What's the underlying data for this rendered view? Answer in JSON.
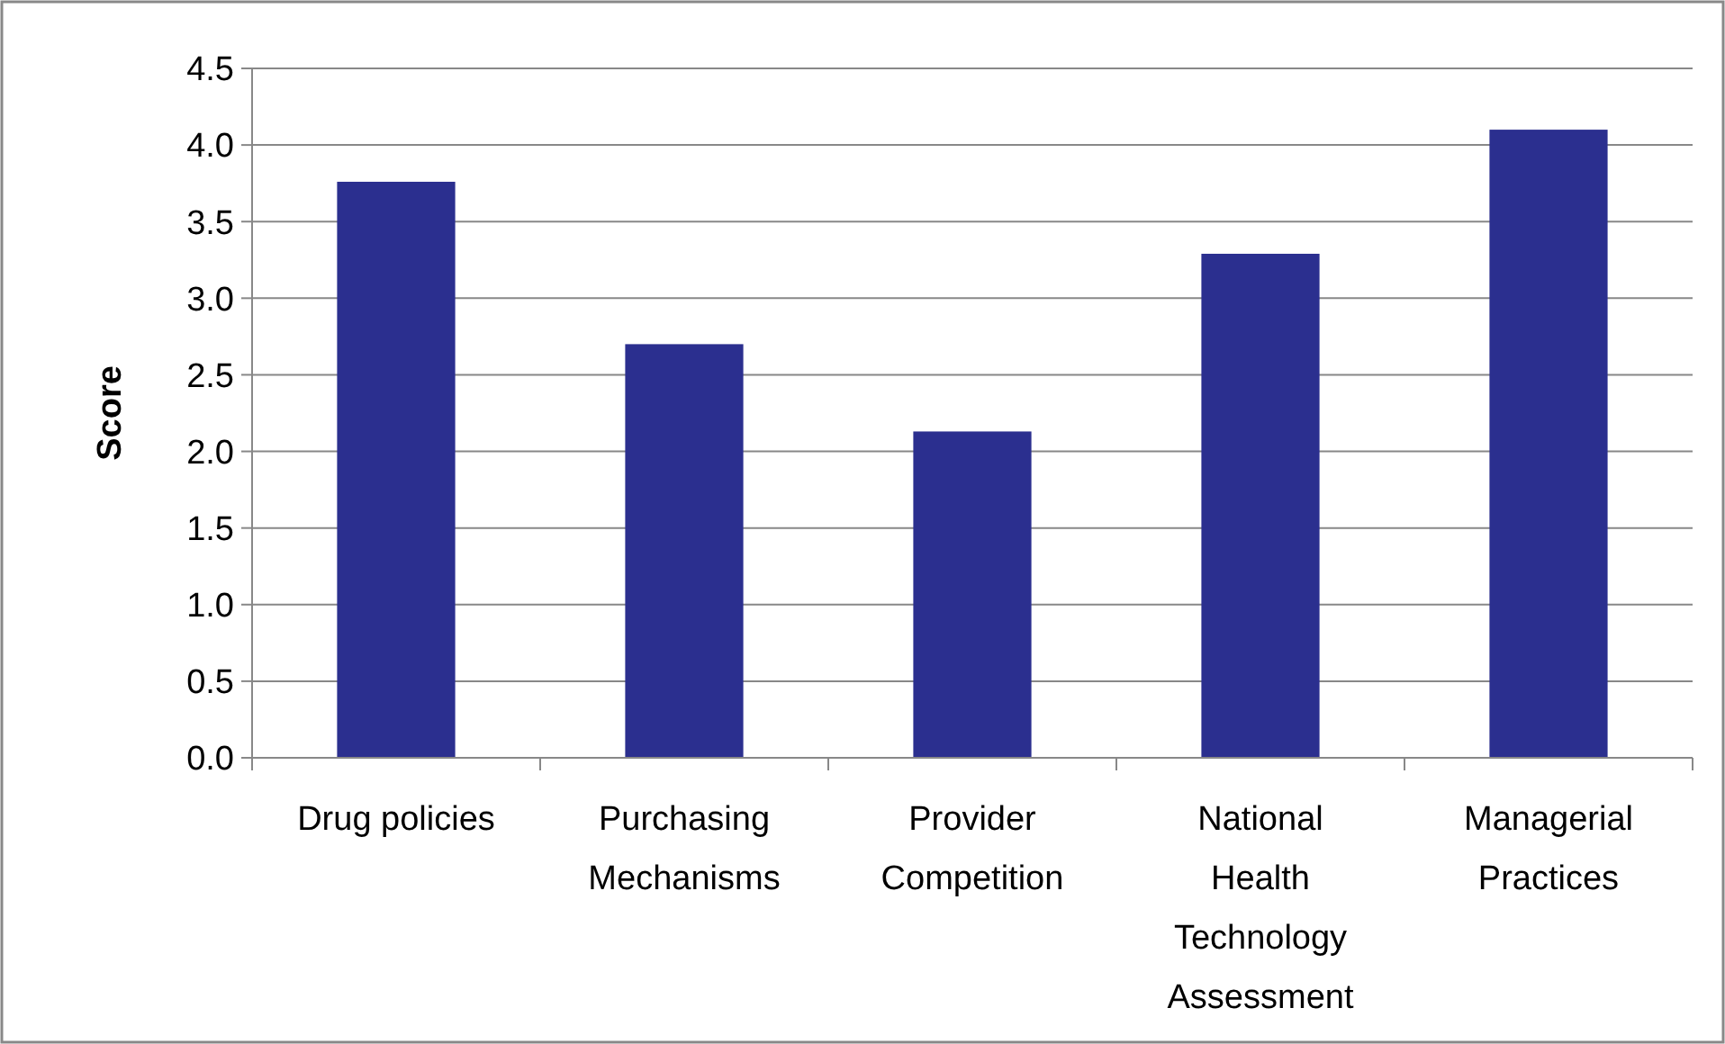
{
  "chart_data": {
    "type": "bar",
    "ylabel": "Score",
    "categories": [
      "Drug policies",
      "Purchasing Mechanisms",
      "Provider Competition",
      "National Health Technology Assessment",
      "Managerial Practices"
    ],
    "values": [
      3.76,
      2.7,
      2.13,
      3.29,
      4.1
    ],
    "color": "#2b2f8f",
    "ylim": [
      0,
      4.5
    ],
    "yticks": [
      {
        "value": 0,
        "label": "0.0"
      },
      {
        "value": 0.5,
        "label": "0.5"
      },
      {
        "value": 1,
        "label": "1.0"
      },
      {
        "value": 1.5,
        "label": "1.5"
      },
      {
        "value": 2,
        "label": "2.0"
      },
      {
        "value": 2.5,
        "label": "2.5"
      },
      {
        "value": 3,
        "label": "3.0"
      },
      {
        "value": 3.5,
        "label": "3.5"
      },
      {
        "value": 4,
        "label": "4.0"
      },
      {
        "value": 4.5,
        "label": "4.5"
      }
    ],
    "grid": "y"
  }
}
